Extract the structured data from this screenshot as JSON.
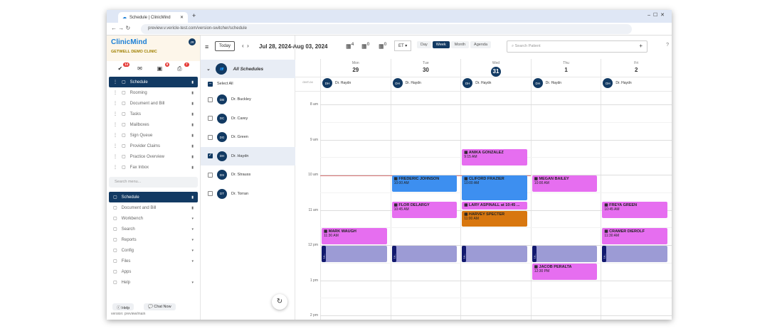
{
  "browser": {
    "tab_title": "Schedule | ClinicMind",
    "url": "preview.v.vericle-test.com/version-switcher/schedule"
  },
  "sidebar": {
    "logo": "ClinicMind",
    "clinic": "GETWELL DEMO CLINIC",
    "user_initials": "JR",
    "badges": [
      {
        "icon": "tasks-icon",
        "count": "14"
      },
      {
        "icon": "mail-icon",
        "count": ""
      },
      {
        "icon": "inbox-icon",
        "count": "8"
      },
      {
        "icon": "fax-icon",
        "count": "7"
      }
    ],
    "pinned": [
      {
        "label": "Schedule",
        "active": true
      },
      {
        "label": "Rooming"
      },
      {
        "label": "Document and Bill"
      },
      {
        "label": "Tasks"
      },
      {
        "label": "Mailboxes"
      },
      {
        "label": "Sign Queue"
      },
      {
        "label": "Provider Claims"
      },
      {
        "label": "Practice Overview"
      },
      {
        "label": "Fax Inbox"
      }
    ],
    "search_placeholder": "Search menu...",
    "menu": [
      {
        "label": "Schedule",
        "active": true,
        "arrow": "pin"
      },
      {
        "label": "Document and Bill",
        "arrow": "pin"
      },
      {
        "label": "Workbench",
        "arrow": "▾"
      },
      {
        "label": "Search",
        "arrow": "▾"
      },
      {
        "label": "Reports",
        "arrow": "▾"
      },
      {
        "label": "Config",
        "arrow": "▾"
      },
      {
        "label": "Files",
        "arrow": "▾"
      },
      {
        "label": "Apps",
        "arrow": ""
      },
      {
        "label": "Help",
        "arrow": "▾"
      }
    ],
    "help": "Help",
    "chat": "Chat Now",
    "version": "version: preview/main"
  },
  "toolbar": {
    "today": "Today",
    "range": "Jul 28, 2024-Aug 03, 2024",
    "counters": [
      "4",
      "0",
      "0"
    ],
    "timezone": "ET",
    "views": [
      "Day",
      "Week",
      "Month",
      "Agenda"
    ],
    "active_view": "Week",
    "search_placeholder": "Search Patient"
  },
  "schedules": {
    "all": "All Schedules",
    "select_all": "Select All",
    "doctors": [
      {
        "init": "DB",
        "name": "Dr. Buckley",
        "checked": false
      },
      {
        "init": "DC",
        "name": "Dr. Carey",
        "checked": false
      },
      {
        "init": "DG",
        "name": "Dr. Green",
        "checked": false
      },
      {
        "init": "DH",
        "name": "Dr. Haydn",
        "checked": true
      },
      {
        "init": "DS",
        "name": "Dr. Strauss",
        "checked": false
      },
      {
        "init": "DT",
        "name": "Dr. Torran",
        "checked": false
      }
    ]
  },
  "calendar": {
    "tz_label": "GMT-04",
    "days": [
      {
        "name": "Mon",
        "num": "29"
      },
      {
        "name": "Tue",
        "num": "30"
      },
      {
        "name": "Wed",
        "num": "31",
        "today": true
      },
      {
        "name": "Thu",
        "num": "1"
      },
      {
        "name": "Fri",
        "num": "2"
      }
    ],
    "provider": {
      "init": "DH",
      "name": "Dr. Haydn"
    },
    "hours": [
      "8 am",
      "9 am",
      "10 am",
      "11 am",
      "12 pm",
      "1 pm",
      "2 pm"
    ],
    "colors": {
      "pink": "#e66ef0",
      "blue": "#3d8ff0",
      "orange": "#d8770f",
      "lunch": "#9c9bd5"
    },
    "events": [
      {
        "day": 2,
        "name": "ANIKA GONZALEZ",
        "time": "9:15 AM",
        "start": 9.25,
        "end": 9.75,
        "color": "pink"
      },
      {
        "day": 1,
        "name": "FREDERIC JOHNSON",
        "time": "10:00 AM",
        "start": 10,
        "end": 10.5,
        "color": "blue"
      },
      {
        "day": 2,
        "name": "CLIFORD FRAZIER",
        "time": "10:00 AM",
        "start": 10,
        "end": 10.75,
        "color": "blue"
      },
      {
        "day": 3,
        "name": "MEGAN BAILEY",
        "time": "10:00 AM",
        "start": 10,
        "end": 10.5,
        "color": "pink"
      },
      {
        "day": 1,
        "name": "FLOR DELARGY",
        "time": "10:45 AM",
        "start": 10.75,
        "end": 11.25,
        "color": "pink"
      },
      {
        "day": 2,
        "name": "LARY ASPINALL at 10:45 ...",
        "time": "",
        "start": 10.75,
        "end": 11,
        "color": "pink"
      },
      {
        "day": 2,
        "name": "HARVEY SPECTER",
        "time": "11:00 AM",
        "start": 11,
        "end": 11.5,
        "color": "orange"
      },
      {
        "day": 4,
        "name": "FREYA GREEN",
        "time": "10:45 AM",
        "start": 10.75,
        "end": 11.25,
        "color": "pink"
      },
      {
        "day": 0,
        "name": "MARK WAUGH",
        "time": "11:30 AM",
        "start": 11.5,
        "end": 12,
        "color": "pink"
      },
      {
        "day": 4,
        "name": "CRAMER DIEROLF",
        "time": "11:30 AM",
        "start": 11.5,
        "end": 12,
        "color": "pink"
      },
      {
        "day": 3,
        "name": "JACOB PERALTA",
        "time": "12:30 PM",
        "start": 12.5,
        "end": 13,
        "color": "pink"
      }
    ],
    "lunch": {
      "label": "Lu...",
      "start": 12,
      "end": 12.5,
      "days": [
        0,
        1,
        2,
        3,
        4
      ]
    }
  }
}
